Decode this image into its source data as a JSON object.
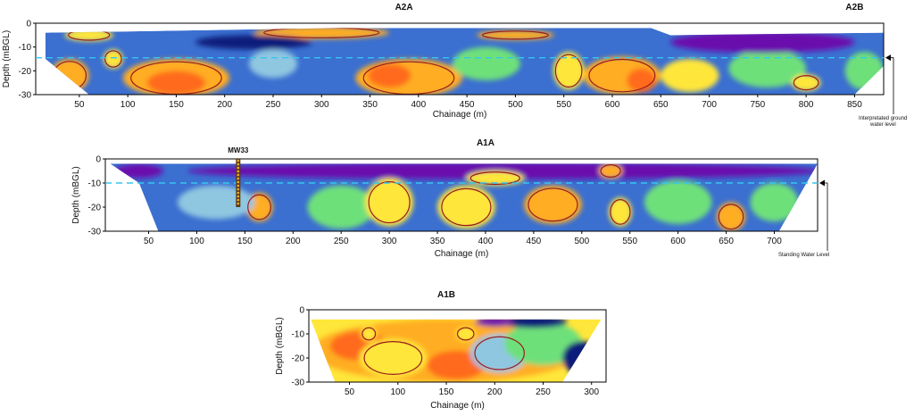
{
  "colors": {
    "deep_purple": "#6a0dad",
    "navy": "#0b1f7a",
    "blue": "#3b6fd0",
    "light_blue": "#8fc6e0",
    "green": "#6ee07a",
    "yellow_green": "#c8ef3a",
    "yellow": "#ffe63a",
    "orange": "#ffad22",
    "red_orange": "#ff6a1a",
    "contour": "#9a1c1c",
    "water_line": "#34c6f0"
  },
  "chart_data": [
    {
      "type": "heatmap",
      "titles": [
        {
          "text": "A2A",
          "x": 385
        },
        {
          "text": "A2B",
          "x": 850
        }
      ],
      "xlabel": "Chainage (m)",
      "ylabel": "Depth (mBGL)",
      "xlim": [
        5,
        880
      ],
      "ylim": [
        -30,
        0
      ],
      "x_ticks": [
        50,
        100,
        150,
        200,
        250,
        300,
        350,
        400,
        450,
        500,
        550,
        600,
        650,
        700,
        750,
        800,
        850
      ],
      "y_ticks": [
        0,
        -10,
        -20,
        -30
      ],
      "water_level_depth": -14.5,
      "water_level_label": "Interpretated ground water level",
      "section_top": [
        [
          15,
          -4
        ],
        [
          320,
          -2
        ],
        [
          640,
          -2
        ],
        [
          660,
          -5
        ],
        [
          880,
          -4
        ]
      ],
      "section_bottom": [
        [
          15,
          -15
        ],
        [
          60,
          -30
        ],
        [
          850,
          -30
        ],
        [
          880,
          -18
        ],
        [
          880,
          -4
        ]
      ],
      "blobs": [
        {
          "x": 300,
          "y": -4,
          "rx": 70,
          "ry": 2.5,
          "c": "orange",
          "edge": true
        },
        {
          "x": 500,
          "y": -5,
          "rx": 40,
          "ry": 2,
          "c": "orange",
          "edge": true
        },
        {
          "x": 60,
          "y": -5,
          "rx": 25,
          "ry": 2.5,
          "c": "yellow",
          "edge": true
        },
        {
          "x": 150,
          "y": -23,
          "rx": 55,
          "ry": 8,
          "c": "orange",
          "edge": true
        },
        {
          "x": 150,
          "y": -25,
          "rx": 30,
          "ry": 5,
          "c": "red_orange"
        },
        {
          "x": 40,
          "y": -22,
          "rx": 20,
          "ry": 7,
          "c": "orange",
          "edge": true
        },
        {
          "x": 85,
          "y": -15,
          "rx": 10,
          "ry": 4,
          "c": "yellow",
          "edge": true
        },
        {
          "x": 390,
          "y": -23,
          "rx": 55,
          "ry": 8,
          "c": "orange",
          "edge": true
        },
        {
          "x": 370,
          "y": -22,
          "rx": 22,
          "ry": 5,
          "c": "red_orange"
        },
        {
          "x": 555,
          "y": -20,
          "rx": 16,
          "ry": 8,
          "c": "yellow",
          "edge": true
        },
        {
          "x": 610,
          "y": -22,
          "rx": 40,
          "ry": 8,
          "c": "orange",
          "edge": true
        },
        {
          "x": 630,
          "y": -24,
          "rx": 15,
          "ry": 5,
          "c": "red_orange"
        },
        {
          "x": 680,
          "y": -22,
          "rx": 30,
          "ry": 7,
          "c": "yellow"
        },
        {
          "x": 760,
          "y": -19,
          "rx": 40,
          "ry": 8,
          "c": "green"
        },
        {
          "x": 800,
          "y": -25,
          "rx": 15,
          "ry": 3.5,
          "c": "yellow",
          "edge": true
        },
        {
          "x": 250,
          "y": -17,
          "rx": 25,
          "ry": 6,
          "c": "light_blue"
        },
        {
          "x": 470,
          "y": -17,
          "rx": 35,
          "ry": 7,
          "c": "green"
        },
        {
          "x": 860,
          "y": -20,
          "rx": 20,
          "ry": 8,
          "c": "green"
        },
        {
          "x": 755,
          "y": -8,
          "rx": 95,
          "ry": 4.5,
          "c": "deep_purple"
        },
        {
          "x": 230,
          "y": -8,
          "rx": 60,
          "ry": 3,
          "c": "navy"
        }
      ]
    },
    {
      "type": "heatmap",
      "titles": [
        {
          "text": "A1A",
          "x": 400
        }
      ],
      "xlabel": "Chainage (m)",
      "ylabel": "Depth (mBGL)",
      "xlim": [
        5,
        745
      ],
      "ylim": [
        -30,
        0
      ],
      "x_ticks": [
        50,
        100,
        150,
        200,
        250,
        300,
        350,
        400,
        450,
        500,
        550,
        600,
        650,
        700
      ],
      "y_ticks": [
        0,
        -10,
        -20,
        -30
      ],
      "water_level_depth": -10,
      "water_level_label": "Standing Water Level",
      "borehole_label": "MW33",
      "borehole_x": 143,
      "borehole_depth": -20,
      "section_top": [
        [
          10,
          -2
        ],
        [
          745,
          -2
        ]
      ],
      "section_bottom": [
        [
          10,
          -2
        ],
        [
          40,
          -10
        ],
        [
          60,
          -30
        ],
        [
          705,
          -30
        ],
        [
          745,
          -2
        ]
      ],
      "blobs": [
        {
          "x": 420,
          "y": -5,
          "rx": 330,
          "ry": 3.5,
          "c": "deep_purple"
        },
        {
          "x": 40,
          "y": -5,
          "rx": 25,
          "ry": 3,
          "c": "deep_purple"
        },
        {
          "x": 410,
          "y": -8,
          "rx": 30,
          "ry": 3,
          "c": "yellow",
          "edge": true
        },
        {
          "x": 530,
          "y": -5,
          "rx": 12,
          "ry": 3,
          "c": "orange",
          "edge": true
        },
        {
          "x": 165,
          "y": -20,
          "rx": 14,
          "ry": 6,
          "c": "orange",
          "edge": true
        },
        {
          "x": 250,
          "y": -20,
          "rx": 35,
          "ry": 9,
          "c": "green"
        },
        {
          "x": 300,
          "y": -18,
          "rx": 25,
          "ry": 10,
          "c": "yellow",
          "edge": true
        },
        {
          "x": 380,
          "y": -20,
          "rx": 30,
          "ry": 9,
          "c": "yellow",
          "edge": true
        },
        {
          "x": 470,
          "y": -19,
          "rx": 30,
          "ry": 8,
          "c": "orange",
          "edge": true
        },
        {
          "x": 540,
          "y": -22,
          "rx": 12,
          "ry": 6,
          "c": "yellow",
          "edge": true
        },
        {
          "x": 600,
          "y": -18,
          "rx": 35,
          "ry": 9,
          "c": "green"
        },
        {
          "x": 655,
          "y": -24,
          "rx": 15,
          "ry": 6,
          "c": "orange",
          "edge": true
        },
        {
          "x": 120,
          "y": -18,
          "rx": 40,
          "ry": 7,
          "c": "light_blue"
        },
        {
          "x": 700,
          "y": -18,
          "rx": 25,
          "ry": 8,
          "c": "green"
        }
      ]
    },
    {
      "type": "heatmap",
      "titles": [
        {
          "text": "A1B",
          "x": 150
        }
      ],
      "xlabel": "Chainage (m)",
      "ylabel": "Depth (mBGL)",
      "xlim": [
        8,
        315
      ],
      "ylim": [
        -30,
        0
      ],
      "x_ticks": [
        50,
        100,
        150,
        200,
        250,
        300
      ],
      "y_ticks": [
        0,
        -10,
        -20,
        -30
      ],
      "section_top": [
        [
          10,
          -4
        ],
        [
          310,
          -4
        ]
      ],
      "section_bottom": [
        [
          10,
          -4
        ],
        [
          35,
          -30
        ],
        [
          270,
          -30
        ],
        [
          310,
          -4
        ]
      ],
      "blobs": [
        {
          "x": 150,
          "y": -17,
          "rx": 140,
          "ry": 13,
          "c": "orange"
        },
        {
          "x": 60,
          "y": -15,
          "rx": 30,
          "ry": 6,
          "c": "red_orange"
        },
        {
          "x": 95,
          "y": -20,
          "rx": 35,
          "ry": 8,
          "c": "yellow",
          "edge": true
        },
        {
          "x": 70,
          "y": -10,
          "rx": 8,
          "ry": 3,
          "c": "yellow",
          "edge": true
        },
        {
          "x": 160,
          "y": -23,
          "rx": 30,
          "ry": 6,
          "c": "red_orange"
        },
        {
          "x": 205,
          "y": -18,
          "rx": 30,
          "ry": 8,
          "c": "light_blue",
          "edge": true
        },
        {
          "x": 250,
          "y": -14,
          "rx": 40,
          "ry": 9,
          "c": "green"
        },
        {
          "x": 290,
          "y": -20,
          "rx": 20,
          "ry": 7,
          "c": "navy"
        },
        {
          "x": 240,
          "y": -5,
          "rx": 35,
          "ry": 2.5,
          "c": "navy"
        },
        {
          "x": 200,
          "y": -5,
          "rx": 20,
          "ry": 2,
          "c": "deep_purple"
        },
        {
          "x": 170,
          "y": -10,
          "rx": 10,
          "ry": 3,
          "c": "yellow",
          "edge": true
        }
      ]
    }
  ]
}
